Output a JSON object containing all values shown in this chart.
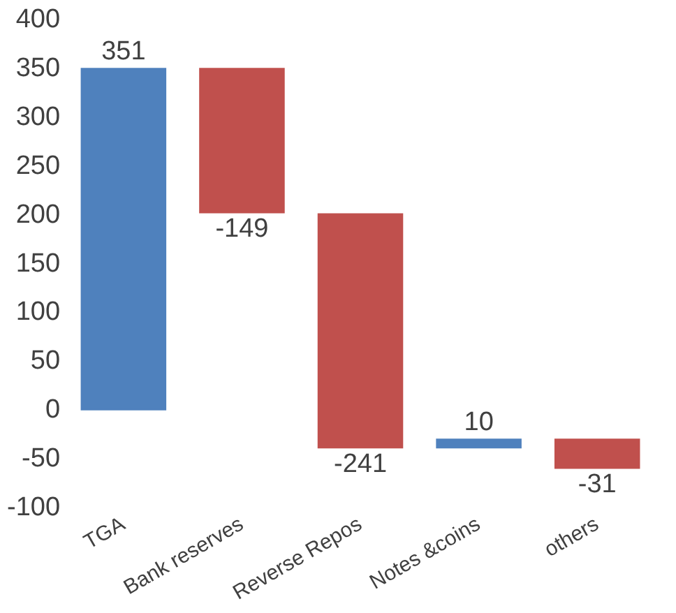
{
  "chart_data": {
    "type": "bar",
    "categories": [
      "TGA",
      "Bank reserves",
      "Reverse Repos",
      "Notes &coins",
      "others"
    ],
    "values": [
      351,
      -149,
      -241,
      10,
      -31
    ],
    "base": [
      0,
      351,
      202,
      -39,
      -29
    ],
    "colors": [
      "#4f81bd",
      "#c0504d",
      "#c0504d",
      "#4f81bd",
      "#c0504d"
    ],
    "ylim": [
      -100,
      400
    ],
    "yticks": [
      -100,
      -50,
      0,
      50,
      100,
      150,
      200,
      250,
      300,
      350,
      400
    ],
    "grid": false,
    "legend": false,
    "data_labels": true
  }
}
